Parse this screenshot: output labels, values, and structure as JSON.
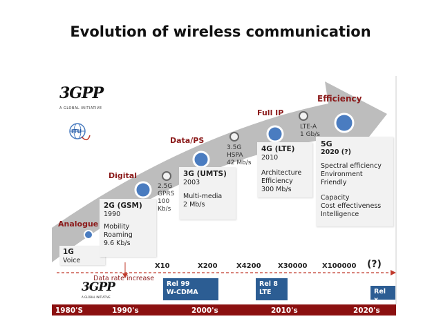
{
  "title": "Evolution of wireless communication",
  "stages": {
    "analogue": "Analogue",
    "digital": "Digital",
    "data_ps": "Data/PS",
    "full_ip": "Full IP",
    "efficiency": "Efficiency"
  },
  "boxes": {
    "g1": {
      "name": "1G",
      "line1": "Voice"
    },
    "g2": {
      "name": "2G (GSM)",
      "year": "1990",
      "line1": "Mobility",
      "line2": "Roaming",
      "line3": "9.6 Kb/s"
    },
    "g3": {
      "name": "3G (UMTS)",
      "year": "2003",
      "line1": "Multi-media",
      "line2": "2 Mb/s"
    },
    "g4": {
      "name": "4G (LTE)",
      "year": "2010",
      "line1": "Architecture",
      "line2": "Efficiency",
      "line3": "300 Mb/s"
    },
    "g5": {
      "name": "5G",
      "year": "2020 (?)",
      "line1": "Spectral efficiency",
      "line2": "Environment Friendly",
      "line3": "Capacity",
      "line4": "Cost effectiveness",
      "line5": "Intelligence"
    }
  },
  "intermediate": {
    "gprs": {
      "line1": "2.5G",
      "line2": "GPRS",
      "line3": "100",
      "line4": "Kb/s"
    },
    "hspa": {
      "line1": "3.5G",
      "line2": "HSPA",
      "line3": "42 Mb/s"
    },
    "ltea": {
      "line1": "LTE-A",
      "line2": "1 Gb/s"
    }
  },
  "data_rate": {
    "label": "Data rate increase",
    "multipliers": [
      "X10",
      "X200",
      "X4200",
      "X30000",
      "X100000"
    ],
    "unknown": "(?)"
  },
  "releases": [
    {
      "line1": "Rel 99",
      "line2": "W-CDMA"
    },
    {
      "line1": "Rel 8",
      "line2": "LTE"
    },
    {
      "line1": "Rel x",
      "line2": ""
    }
  ],
  "eras": [
    "1980'S",
    "1990's",
    "2000's",
    "2010's",
    "2020's"
  ],
  "logos": {
    "threegpp": "3GPP",
    "threegpp_tag": "A GLOBAL INITIATIVE",
    "itu": "ITU"
  },
  "colors": {
    "arrow": "#bdbdbd",
    "stage_text": "#8b1a1a",
    "circle": "#4a7cc0",
    "release": "#2c5d93",
    "era_bar": "#8b1010"
  }
}
